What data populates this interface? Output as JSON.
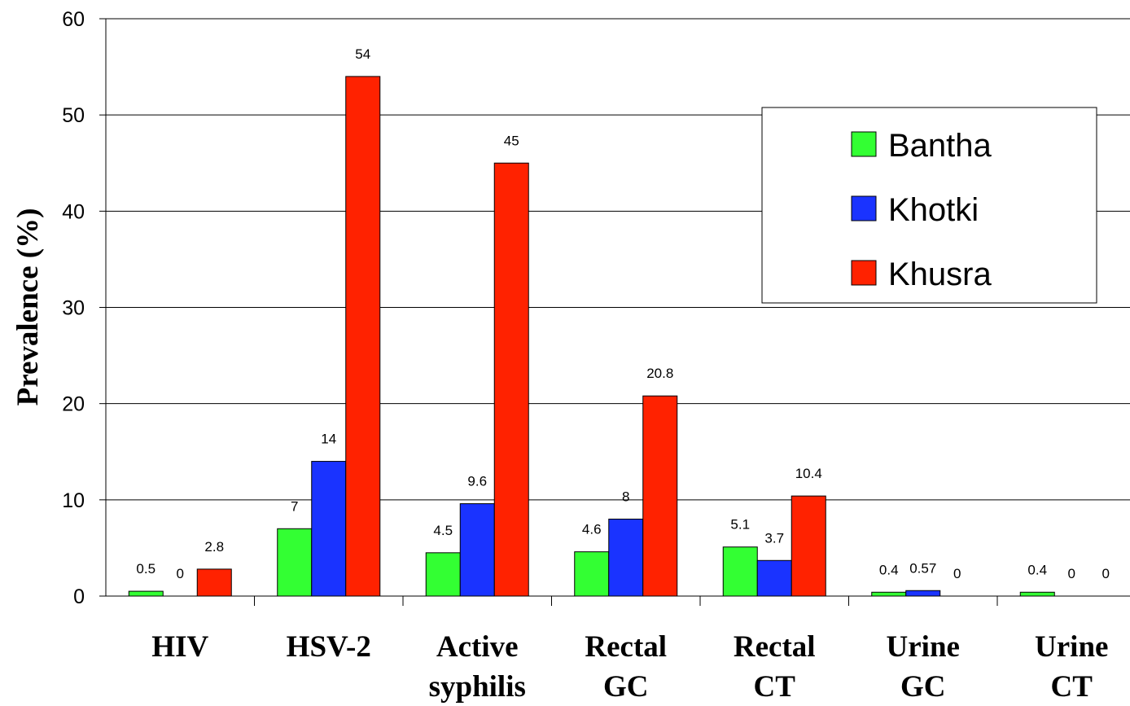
{
  "chart_data": {
    "type": "bar",
    "title": "",
    "xlabel": "",
    "ylabel": "Prevalence (%)",
    "ylim": [
      0,
      60
    ],
    "yticks": [
      0,
      10,
      20,
      30,
      40,
      50,
      60
    ],
    "grid": true,
    "legend_position": "top-right",
    "categories": [
      [
        "HIV"
      ],
      [
        "HSV-2"
      ],
      [
        "Active",
        "syphilis"
      ],
      [
        "Rectal",
        "GC"
      ],
      [
        "Rectal",
        "CT"
      ],
      [
        "Urine",
        "GC"
      ],
      [
        "Urine",
        "CT"
      ]
    ],
    "series": [
      {
        "name": "Bantha",
        "color": "#33ff33",
        "values": [
          0.5,
          7,
          4.5,
          4.6,
          5.1,
          0.4,
          0.4
        ],
        "labels": [
          "0.5",
          "7",
          "4.5",
          "4.6",
          "5.1",
          "0.4",
          "0.4"
        ]
      },
      {
        "name": "Khotki",
        "color": "#1a33ff",
        "values": [
          0,
          14,
          9.6,
          8,
          3.7,
          0.57,
          0
        ],
        "labels": [
          "0",
          "14",
          "9.6",
          "8",
          "3.7",
          "0.57",
          "0"
        ]
      },
      {
        "name": "Khusra",
        "color": "#ff2200",
        "values": [
          2.8,
          54,
          45,
          20.8,
          10.4,
          0,
          0
        ],
        "labels": [
          "2.8",
          "54",
          "45",
          "20.8",
          "10.4",
          "0",
          "0"
        ]
      }
    ]
  }
}
